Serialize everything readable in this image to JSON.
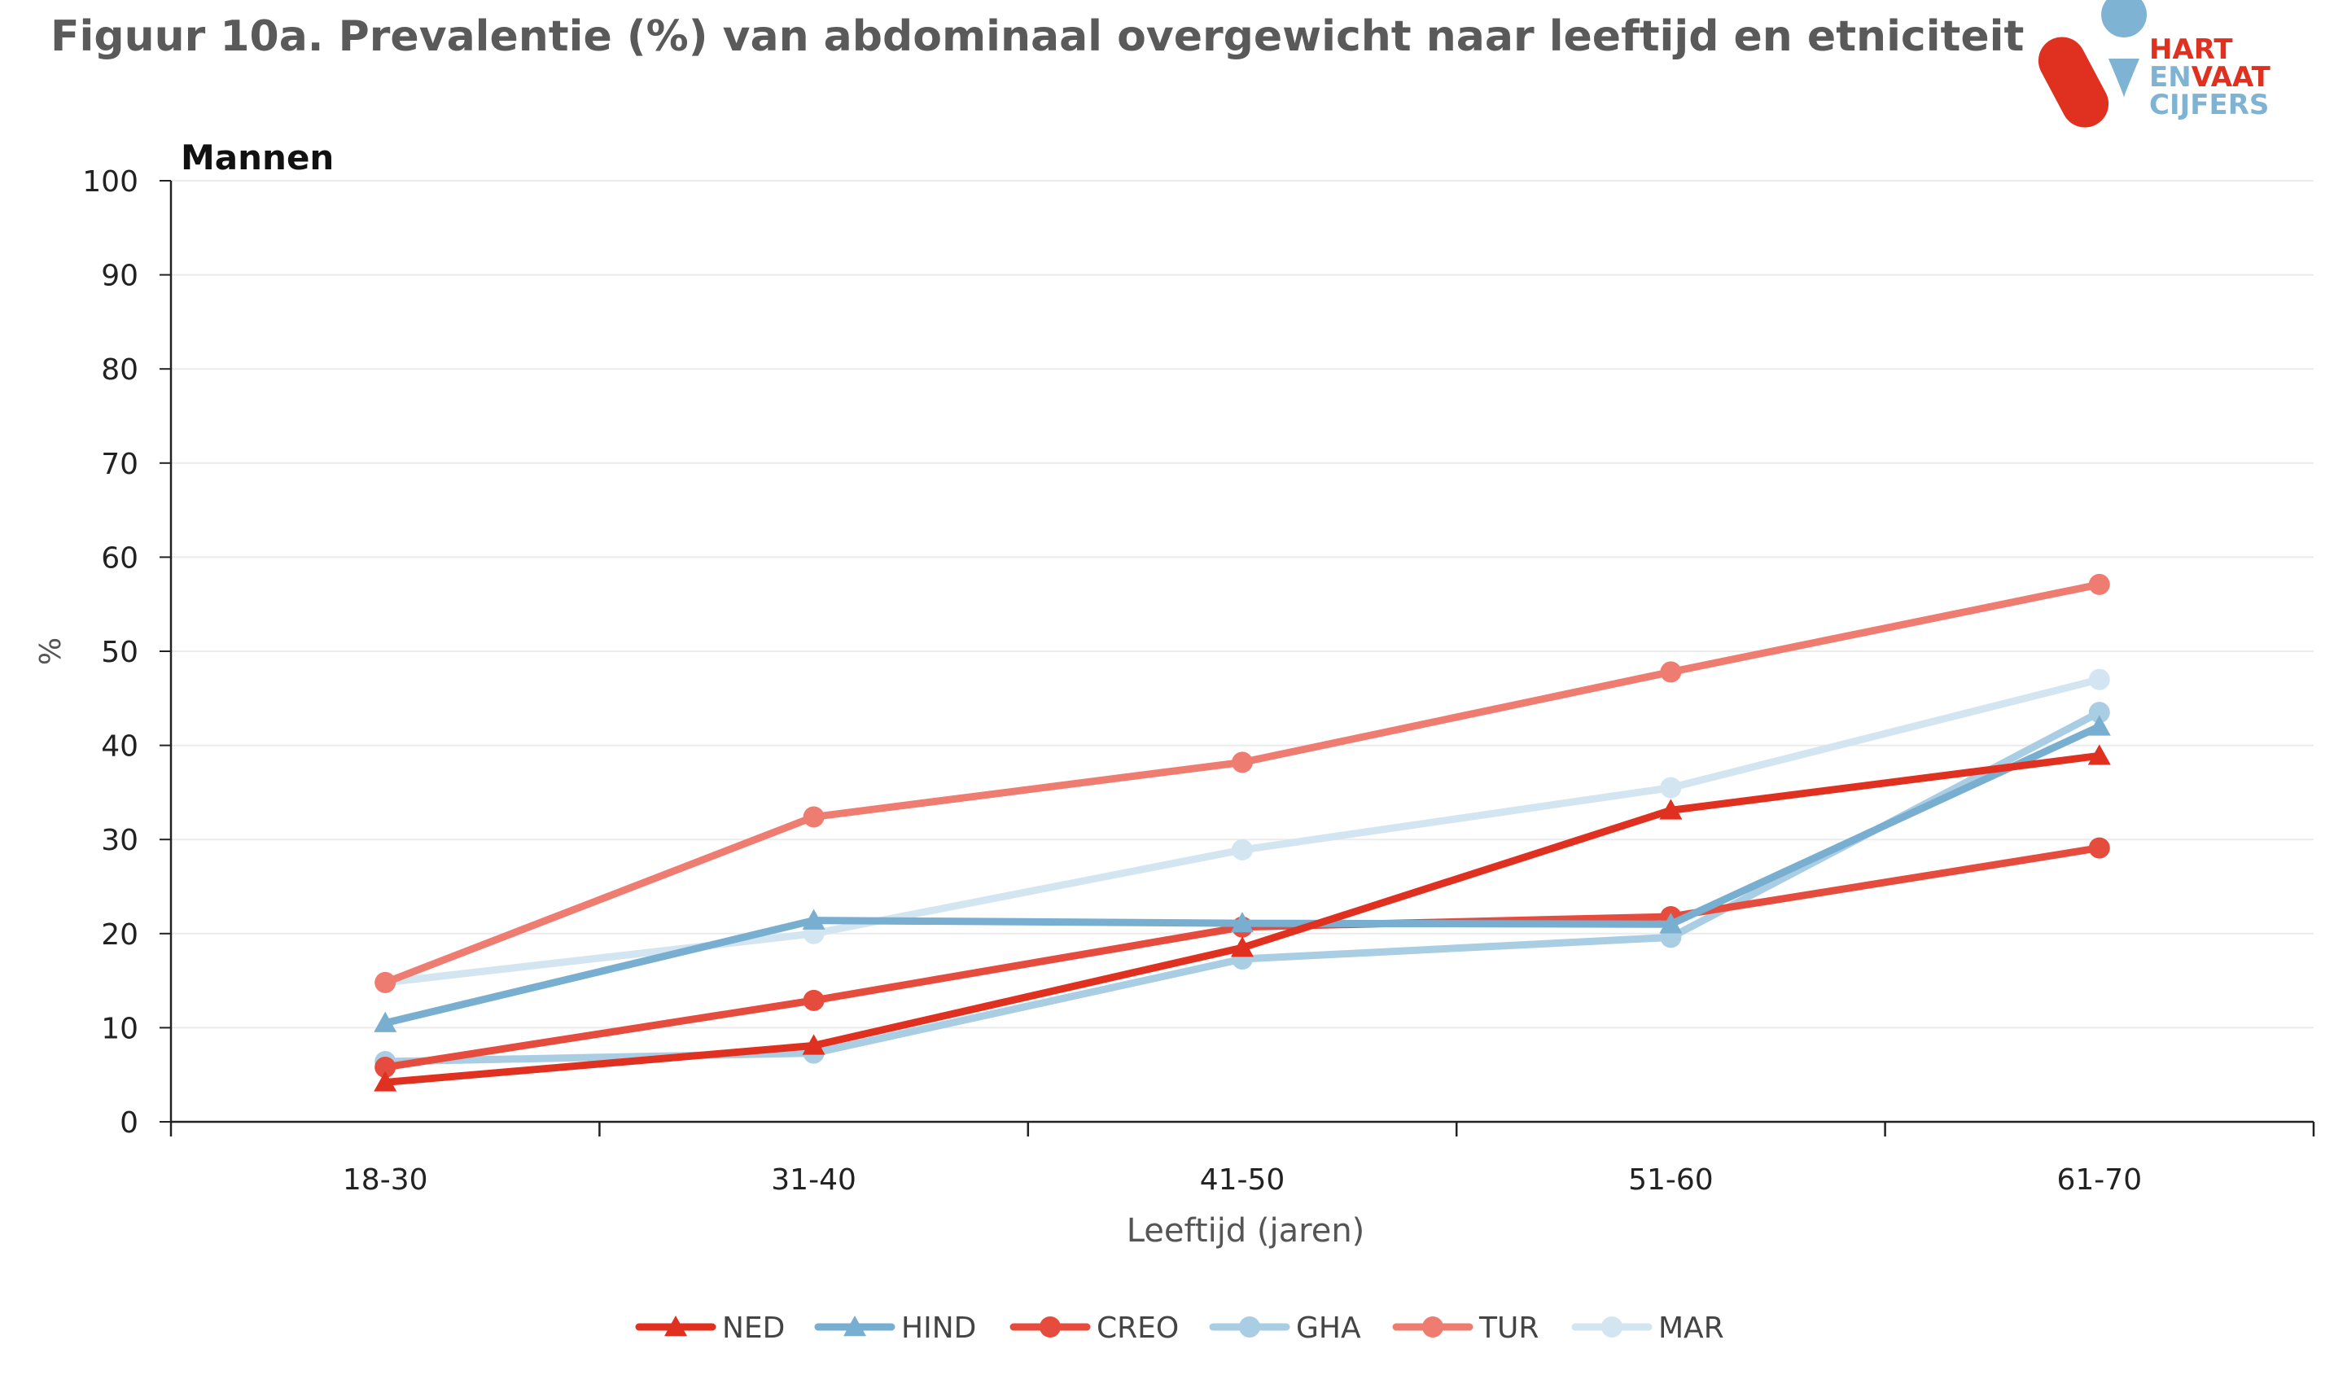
{
  "header": {
    "title": "Figuur 10a. Prevalentie (%) van  abdominaal overgewicht naar leeftijd en etniciteit"
  },
  "logo": {
    "line1": "HART",
    "line2a": "EN",
    "line2b": "VAAT",
    "line3": "CIJFERS",
    "colors": {
      "red": "#e03020",
      "blue": "#7fb3d3"
    }
  },
  "chart_data": {
    "type": "line",
    "panel_label": "Mannen",
    "title": "Figuur 10a. Prevalentie (%) van  abdominaal overgewicht naar leeftijd en etniciteit",
    "xlabel": "Leeftijd (jaren)",
    "ylabel": "%",
    "ylim": [
      0,
      100
    ],
    "yticks": [
      "0",
      "10",
      "20",
      "30",
      "40",
      "50",
      "60",
      "70",
      "80",
      "90",
      "100"
    ],
    "categories": [
      "18-30",
      "31-40",
      "41-50",
      "51-60",
      "61-70"
    ],
    "grid": true,
    "legend_position": "bottom",
    "series": [
      {
        "name": "NED",
        "color": "#e03020",
        "marker": "triangle",
        "values": [
          4.2,
          8.1,
          18.5,
          33.1,
          38.9
        ]
      },
      {
        "name": "HIND",
        "color": "#78afd0",
        "marker": "triangle",
        "values": [
          10.5,
          21.4,
          21.1,
          21.0,
          42.0
        ]
      },
      {
        "name": "CREO",
        "color": "#e64c3e",
        "marker": "circle",
        "values": [
          5.8,
          12.9,
          20.7,
          21.8,
          29.1
        ]
      },
      {
        "name": "GHA",
        "color": "#a9cde3",
        "marker": "circle",
        "values": [
          6.4,
          7.3,
          17.3,
          19.6,
          43.5
        ]
      },
      {
        "name": "TUR",
        "color": "#ee7c70",
        "marker": "circle",
        "values": [
          14.8,
          32.4,
          38.2,
          47.8,
          57.1
        ]
      },
      {
        "name": "MAR",
        "color": "#d3e5f1",
        "marker": "circle",
        "values": [
          14.8,
          20.0,
          28.9,
          35.5,
          47.0
        ]
      }
    ]
  }
}
